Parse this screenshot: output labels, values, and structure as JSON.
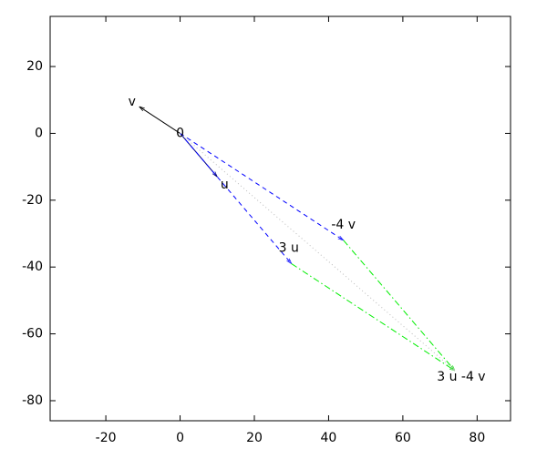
{
  "chart_data": {
    "type": "vector",
    "xlim": [
      -35,
      89
    ],
    "ylim": [
      -86,
      35
    ],
    "xticks": [
      -20,
      0,
      20,
      40,
      60,
      80
    ],
    "yticks": [
      -80,
      -60,
      -40,
      -20,
      0,
      20
    ],
    "segments": [
      {
        "x1": 0,
        "y1": 0,
        "x2": -11,
        "y2": 8,
        "color": "#000000",
        "style": "solid"
      },
      {
        "x1": 0,
        "y1": 0,
        "x2": 10,
        "y2": -13,
        "color": "#000080",
        "style": "solid"
      },
      {
        "x1": 0,
        "y1": 0,
        "x2": 30,
        "y2": -39,
        "color": "#0000ff",
        "style": "dashed"
      },
      {
        "x1": 0,
        "y1": 0,
        "x2": 44,
        "y2": -32,
        "color": "#0000ff",
        "style": "dashed"
      },
      {
        "x1": 30,
        "y1": -39,
        "x2": 74,
        "y2": -71,
        "color": "#00ee00",
        "style": "dashdot"
      },
      {
        "x1": 44,
        "y1": -32,
        "x2": 74,
        "y2": -71,
        "color": "#00ee00",
        "style": "dashdot"
      },
      {
        "x1": 0,
        "y1": 0,
        "x2": 74,
        "y2": -71,
        "color": "#bbbbbb",
        "style": "dotted"
      }
    ],
    "points": [
      {
        "label": "v",
        "x": -11,
        "y": 8
      },
      {
        "label": "0",
        "x": 0,
        "y": 0
      },
      {
        "label": "u",
        "x": 10,
        "y": -13
      },
      {
        "label": "-4 v",
        "x": 44,
        "y": -32
      },
      {
        "label": "3 u",
        "x": 30,
        "y": -39
      },
      {
        "label": "3 u -4 v",
        "x": 74,
        "y": -71
      }
    ]
  }
}
